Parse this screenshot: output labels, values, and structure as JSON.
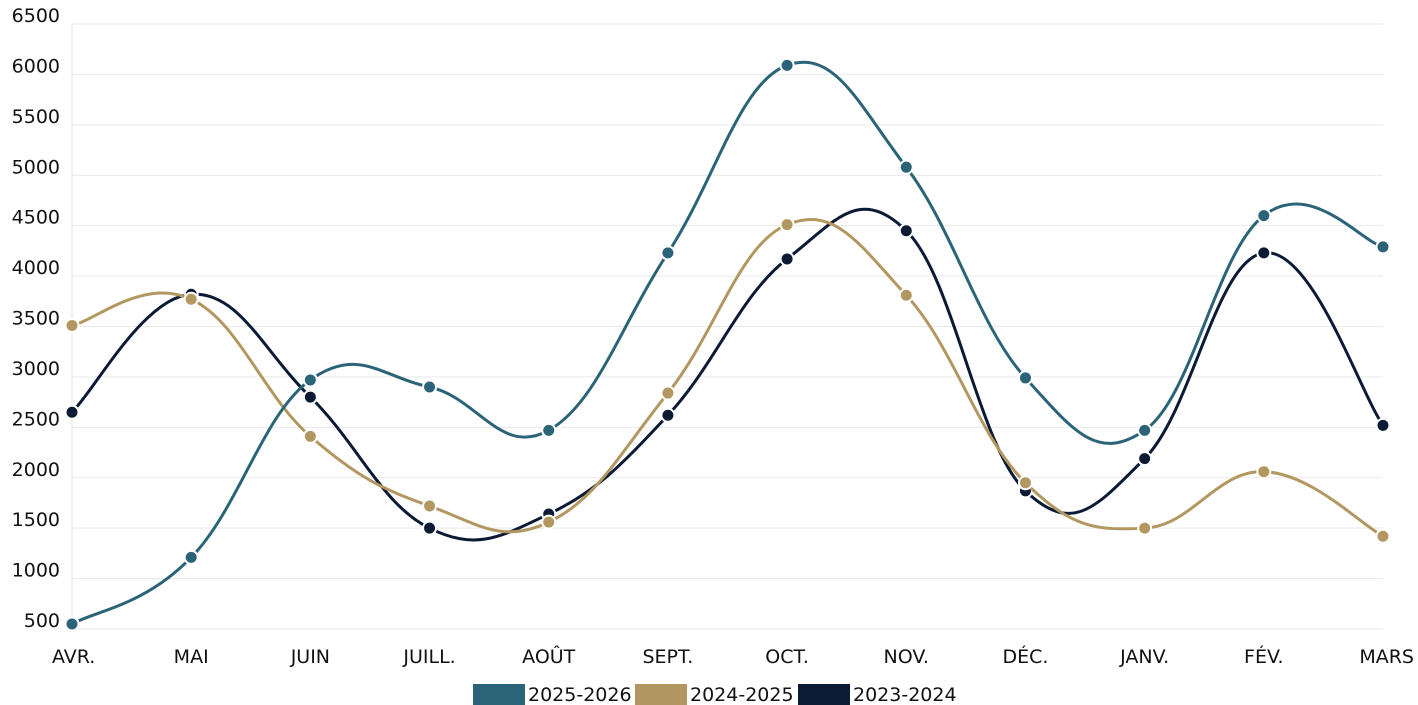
{
  "chart_data": {
    "type": "line",
    "curve": "smooth",
    "categories": [
      "AVR.",
      "MAI",
      "JUIN",
      "JUILL.",
      "AOÛT",
      "SEPT.",
      "OCT.",
      "NOV.",
      "DÉC.",
      "JANV.",
      "FÉV.",
      "MARS"
    ],
    "series": [
      {
        "name": "2025-2026",
        "color": "#2b6378",
        "values": [
          550,
          1210,
          2970,
          2900,
          2470,
          4230,
          6090,
          5080,
          2990,
          2470,
          4600,
          4290
        ]
      },
      {
        "name": "2024-2025",
        "color": "#b39760",
        "values": [
          3510,
          3770,
          2410,
          1720,
          1560,
          2840,
          4510,
          3810,
          1950,
          1500,
          2060,
          1420
        ]
      },
      {
        "name": "2023-2024",
        "color": "#0b1a35",
        "values": [
          2650,
          3820,
          2800,
          1500,
          1640,
          2620,
          4170,
          4450,
          1870,
          2190,
          4230,
          2520
        ]
      }
    ],
    "yticks": [
      500,
      1000,
      1500,
      2000,
      2500,
      3000,
      3500,
      4000,
      4500,
      5000,
      5500,
      6000,
      6500
    ],
    "ylim": [
      500,
      6500
    ],
    "grid": true,
    "legend": "bottom-center"
  }
}
